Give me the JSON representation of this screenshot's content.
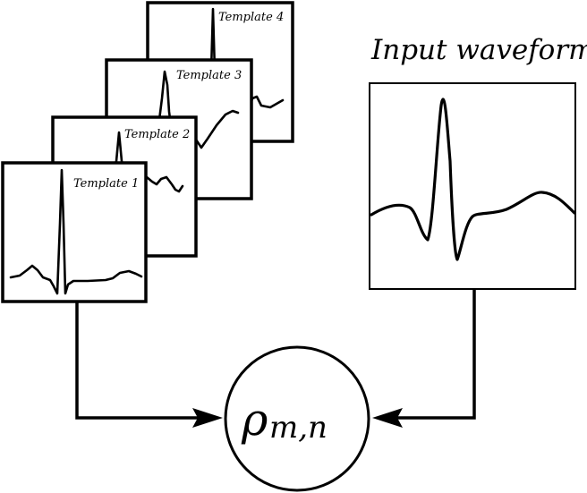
{
  "templates": [
    {
      "label": "Template 1"
    },
    {
      "label": "Template 2"
    },
    {
      "label": "Template 3"
    },
    {
      "label": "Template 4"
    }
  ],
  "input": {
    "label": "Input waveform"
  },
  "correlation": {
    "symbol": "ρ",
    "subscript": "m,n"
  }
}
